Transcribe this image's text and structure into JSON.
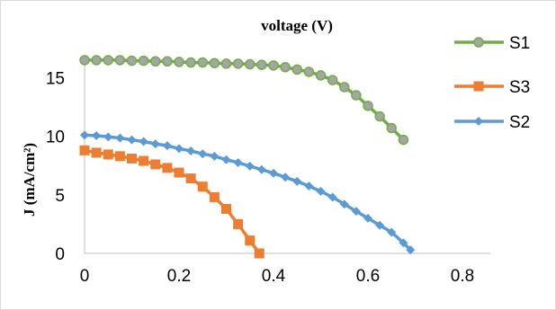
{
  "chart_data": {
    "type": "line",
    "title": "voltage (V)",
    "xlabel": "",
    "ylabel": "J (mA/cm²)",
    "xlim": [
      0,
      0.9
    ],
    "ylim": [
      0,
      17
    ],
    "x_ticks": [
      "0",
      "0.2",
      "0.4",
      "0.6",
      "0.8"
    ],
    "y_ticks": [
      "0",
      "5",
      "10",
      "15"
    ],
    "x_tick_values": [
      0,
      0.2,
      0.4,
      0.6,
      0.8
    ],
    "y_tick_values": [
      0,
      5,
      10,
      15
    ],
    "grid": false,
    "legend_position": "right",
    "series": [
      {
        "name": "S1",
        "color": "#70ad47",
        "marker": "circle",
        "x": [
          0,
          0.025,
          0.05,
          0.075,
          0.1,
          0.125,
          0.15,
          0.175,
          0.2,
          0.225,
          0.25,
          0.275,
          0.3,
          0.325,
          0.35,
          0.375,
          0.4,
          0.425,
          0.45,
          0.475,
          0.5,
          0.525,
          0.55,
          0.575,
          0.6,
          0.625,
          0.65,
          0.675
        ],
        "y": [
          16.5,
          16.5,
          16.5,
          16.5,
          16.45,
          16.45,
          16.4,
          16.4,
          16.35,
          16.3,
          16.3,
          16.25,
          16.2,
          16.2,
          16.15,
          16.1,
          16.05,
          15.9,
          15.7,
          15.5,
          15.2,
          14.8,
          14.2,
          13.5,
          12.6,
          11.7,
          10.7,
          9.7
        ]
      },
      {
        "name": "S3",
        "color": "#ed7d31",
        "marker": "square",
        "x": [
          0,
          0.025,
          0.05,
          0.075,
          0.1,
          0.125,
          0.15,
          0.175,
          0.2,
          0.225,
          0.25,
          0.275,
          0.3,
          0.325,
          0.35,
          0.37
        ],
        "y": [
          8.8,
          8.6,
          8.45,
          8.3,
          8.1,
          7.9,
          7.6,
          7.3,
          6.9,
          6.4,
          5.7,
          4.8,
          3.8,
          2.5,
          1.1,
          0
        ]
      },
      {
        "name": "S2",
        "color": "#5b9bd5",
        "marker": "diamond",
        "x": [
          0,
          0.025,
          0.05,
          0.075,
          0.1,
          0.125,
          0.15,
          0.175,
          0.2,
          0.225,
          0.25,
          0.275,
          0.3,
          0.325,
          0.35,
          0.375,
          0.4,
          0.425,
          0.45,
          0.475,
          0.5,
          0.525,
          0.55,
          0.575,
          0.6,
          0.625,
          0.65,
          0.675,
          0.69
        ],
        "y": [
          10.1,
          10.05,
          9.95,
          9.85,
          9.7,
          9.55,
          9.35,
          9.2,
          8.95,
          8.75,
          8.5,
          8.3,
          8.0,
          7.75,
          7.45,
          7.15,
          6.85,
          6.5,
          6.15,
          5.75,
          5.3,
          4.8,
          4.2,
          3.6,
          3.0,
          2.4,
          1.8,
          0.9,
          0.3
        ]
      }
    ]
  }
}
